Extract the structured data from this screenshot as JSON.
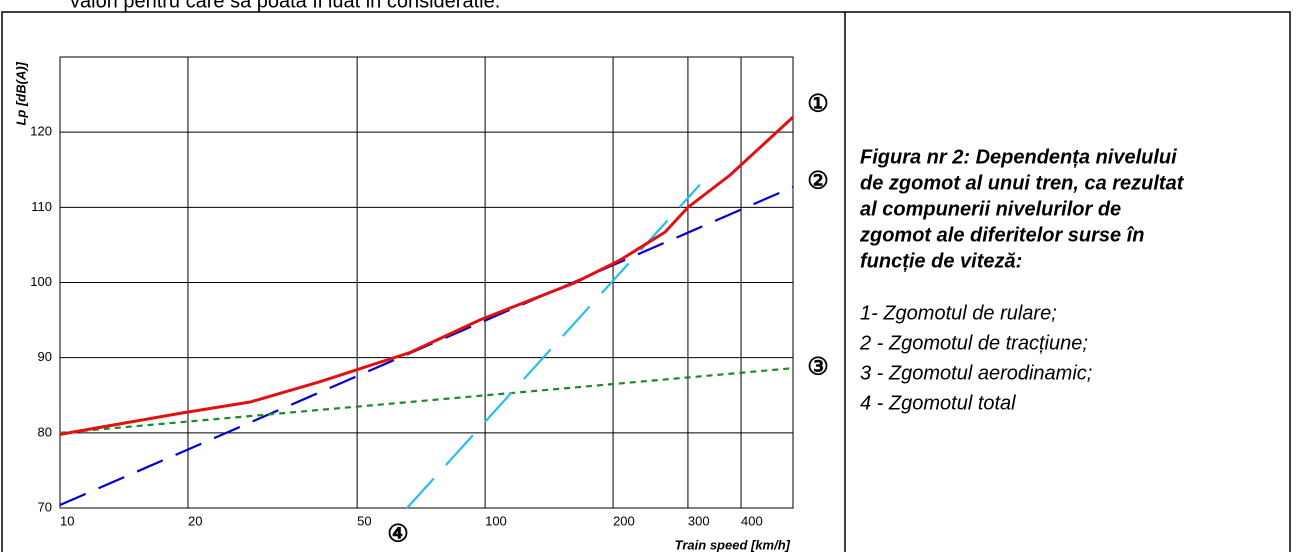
{
  "header_text": "valori pentru care sa poata fi luat in consideratie.",
  "chart_data": {
    "type": "line",
    "ylabel": "Lp [dB(A)]",
    "xlabel": "Train speed [km/h]",
    "xscale": "log",
    "xlim": [
      10,
      530
    ],
    "ylim": [
      70,
      130
    ],
    "xticks": [
      10,
      20,
      50,
      100,
      200,
      300,
      400
    ],
    "yticks": [
      70,
      80,
      90,
      100,
      110,
      120
    ],
    "grid": true,
    "series": [
      {
        "label": "①",
        "color": "#0000cc",
        "dash": "28 14",
        "x": [
          10,
          530
        ],
        "values": [
          70.4,
          112.7
        ]
      },
      {
        "label": "②",
        "color": "#1a8a2a",
        "dash": "6 5",
        "x": [
          10,
          530
        ],
        "values": [
          80,
          88.6
        ]
      },
      {
        "label": "③",
        "color": "#22c0f0",
        "dash": "40 18",
        "x": [
          65.5,
          320
        ],
        "values": [
          70,
          113
        ]
      },
      {
        "label": "④",
        "color": "#e21010",
        "dash": "none",
        "x": [
          10,
          19.2,
          28,
          40.9,
          66.7,
          97,
          163,
          208,
          265,
          300,
          377,
          530
        ],
        "values": [
          79.8,
          82.6,
          84.1,
          86.8,
          90.7,
          95,
          100,
          103,
          106.7,
          110,
          114.3,
          122
        ]
      }
    ]
  },
  "caption": {
    "title_lines": [
      "Figura nr 2: Dependența nivelului",
      "de zgomot al unui tren, ca rezultat",
      "al compunerii nivelurilor de",
      "zgomot ale diferitelor surse în",
      "funcție de viteză:"
    ],
    "items": [
      "1- Zgomotul de rulare;",
      "2 - Zgomotul de tracțiune;",
      "3 - Zgomotul aerodinamic;",
      "4 -  Zgomotul total"
    ]
  }
}
